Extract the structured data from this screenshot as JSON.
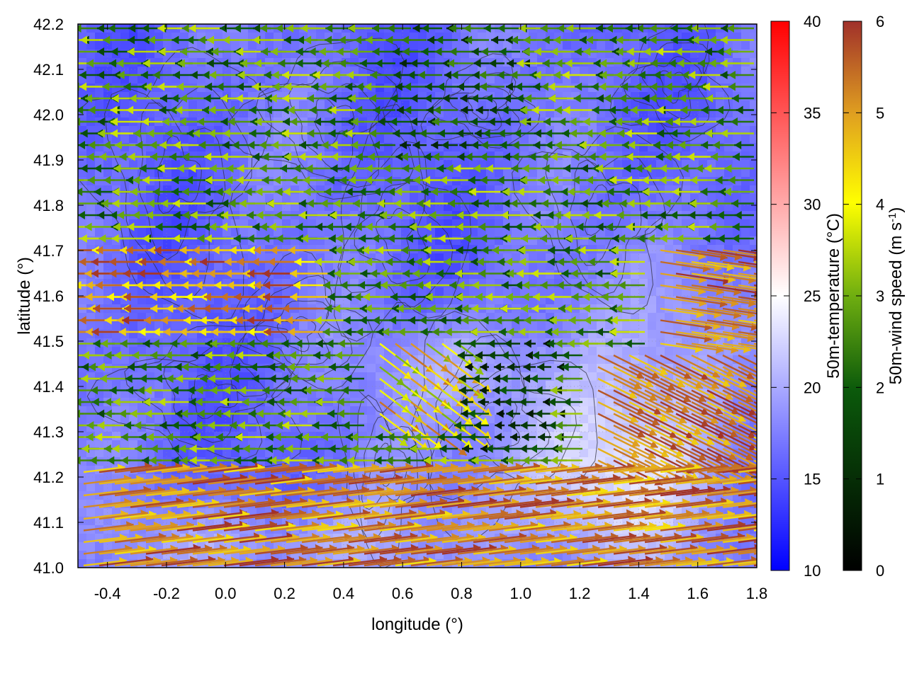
{
  "chart_data": {
    "type": "heatmap",
    "overlay": "wind vector field with contour lines",
    "xlabel": "longitude (°)",
    "ylabel": "latitude (°)",
    "xlim": [
      -0.5,
      1.8
    ],
    "ylim": [
      41.0,
      42.2
    ],
    "x_ticks": [
      -0.4,
      -0.2,
      0.0,
      0.2,
      0.4,
      0.6,
      0.8,
      1.0,
      1.2,
      1.4,
      1.6,
      1.8
    ],
    "x_tick_labels": [
      "-0.4",
      "-0.2",
      "0.0",
      "0.2",
      "0.4",
      "0.6",
      "0.8",
      "1.0",
      "1.2",
      "1.4",
      "1.6",
      "1.8"
    ],
    "y_ticks": [
      41.0,
      41.1,
      41.2,
      41.3,
      41.4,
      41.5,
      41.6,
      41.7,
      41.8,
      41.9,
      42.0,
      42.1,
      42.2
    ],
    "y_tick_labels": [
      "41.0",
      "41.1",
      "41.2",
      "41.3",
      "41.4",
      "41.5",
      "41.6",
      "41.7",
      "41.8",
      "41.9",
      "42.0",
      "42.1",
      "42.2"
    ],
    "grid": true,
    "colorbars": [
      {
        "id": "temperature",
        "label": "50m-temperature (°C)",
        "range": [
          10,
          40
        ],
        "ticks": [
          10,
          15,
          20,
          25,
          30,
          35,
          40
        ],
        "tick_labels": [
          "10",
          "15",
          "20",
          "25",
          "30",
          "35",
          "40"
        ],
        "colormap": [
          "#0000ff",
          "#ffffff",
          "#ff0000"
        ]
      },
      {
        "id": "wind_speed",
        "label_main": "50m-wind speed (m s",
        "label_sup": "-1",
        "label_end": ")",
        "range": [
          0,
          6
        ],
        "ticks": [
          0,
          1,
          2,
          3,
          4,
          5,
          6
        ],
        "tick_labels": [
          "0",
          "1",
          "2",
          "3",
          "4",
          "5",
          "6"
        ],
        "colormap": [
          "#000000",
          "#0b5a0b",
          "#6fae10",
          "#ffff00",
          "#e0a020",
          "#a0302a"
        ]
      }
    ],
    "temperature_field_range_observed": [
      15,
      24
    ],
    "wind_regimes": [
      {
        "region": "north and central",
        "direction": "westward",
        "speed_range": [
          1.5,
          3.5
        ]
      },
      {
        "region": "west coast band lat 41.5-41.7",
        "direction": "westward",
        "speed_range": [
          4.0,
          6.0
        ]
      },
      {
        "region": "south lat 41.0-41.2",
        "direction": "eastward",
        "speed_range": [
          4.5,
          6.0
        ]
      },
      {
        "region": "southeast lon 1.3-1.8",
        "direction": "south-eastward",
        "speed_range": [
          4.5,
          6.0
        ]
      }
    ]
  }
}
